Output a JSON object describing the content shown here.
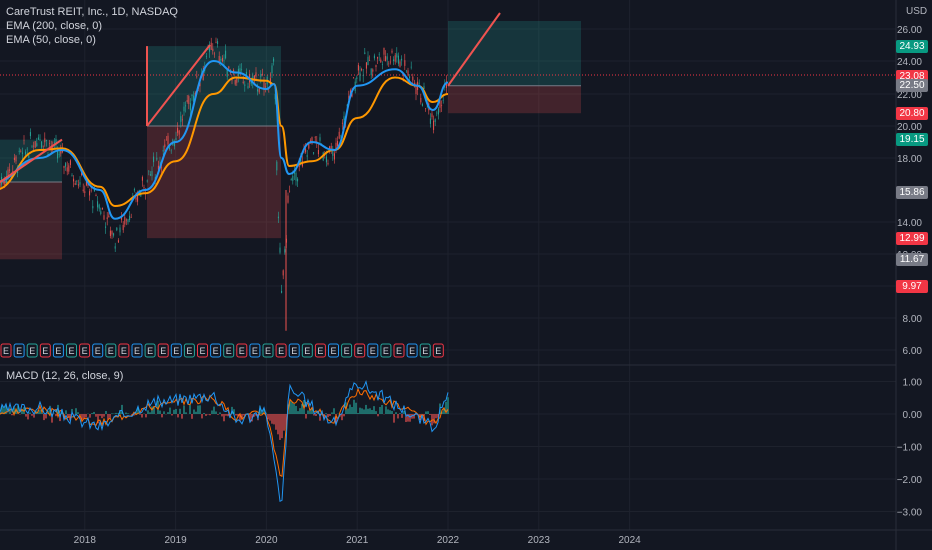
{
  "legend": {
    "symbol": "CareTrust REIT, Inc., 1D, NASDAQ",
    "ema200": "EMA (200, close, 0)",
    "ema50": "EMA (50, close, 0)",
    "macd": "MACD (12, 26, close, 9)"
  },
  "currency": "USD",
  "colors": {
    "background": "#131722",
    "ema_fast": "#2196f3",
    "ema_slow": "#ff9800",
    "up": "#26a69a",
    "down": "#ef5350",
    "macd_line": "#2196f3",
    "signal_line": "#ff6d00"
  },
  "price_tags": [
    {
      "value": "24.93",
      "color": "#089981"
    },
    {
      "value": "23.08",
      "color": "#f23645"
    },
    {
      "value": "22.50",
      "color": "#787b86"
    },
    {
      "value": "20.80",
      "color": "#f23645"
    },
    {
      "value": "19.15",
      "color": "#089981"
    },
    {
      "value": "15.86",
      "color": "#787b86"
    },
    {
      "value": "12.99",
      "color": "#f23645"
    },
    {
      "value": "11.67",
      "color": "#787b86"
    },
    {
      "value": "9.97",
      "color": "#f23645"
    }
  ],
  "chart_data": [
    {
      "type": "line",
      "title": "CareTrust REIT, Inc., 1D, NASDAQ",
      "price_axis_ticks": [
        "26.00",
        "24.00",
        "22.00",
        "20.00",
        "18.00",
        "14.00",
        "12.00",
        "10.00",
        "8.00",
        "6.00"
      ],
      "price_axis_values": [
        26,
        24,
        22,
        20,
        18,
        14,
        12,
        10,
        8,
        6
      ],
      "time_axis_ticks": [
        "2018",
        "2019",
        "2020",
        "2021",
        "2022",
        "2023",
        "2024"
      ],
      "series": [
        {
          "name": "Price",
          "x": [
            "2017-01",
            "2017-07",
            "2017-10",
            "2018-03",
            "2018-05",
            "2018-09",
            "2019-01",
            "2019-06",
            "2019-09",
            "2020-01",
            "2020-02",
            "2020-03",
            "2020-04",
            "2020-07",
            "2020-10",
            "2021-01",
            "2021-06",
            "2021-09",
            "2021-11",
            "2022-01"
          ],
          "values": [
            16.0,
            19.5,
            18.0,
            15.0,
            13.0,
            16.5,
            19.5,
            25.0,
            23.0,
            22.5,
            23.5,
            9.0,
            16.0,
            19.0,
            18.0,
            23.5,
            24.5,
            22.5,
            20.5,
            22.8
          ]
        },
        {
          "name": "EMA (50, close, 0)",
          "values": [
            16.0,
            18.5,
            18.6,
            16.2,
            15.0,
            15.8,
            17.8,
            22.0,
            23.0,
            22.8,
            22.6,
            20.0,
            17.5,
            17.8,
            18.5,
            20.5,
            23.0,
            22.5,
            21.5,
            22.0
          ]
        },
        {
          "name": "EMA (200, close, 0)",
          "values": [
            16.5,
            18.0,
            18.5,
            16.0,
            14.2,
            16.0,
            19.0,
            24.0,
            23.3,
            22.3,
            22.6,
            18.0,
            17.0,
            19.0,
            18.5,
            22.5,
            23.5,
            22.5,
            21.0,
            22.7
          ]
        }
      ],
      "positions": [
        {
          "side": "long",
          "target": 19.15,
          "stop": 11.67
        },
        {
          "side": "long",
          "target": 24.93,
          "stop": 12.99
        },
        {
          "side": "long",
          "target": 26.5,
          "stop": 20.8
        }
      ]
    },
    {
      "type": "line",
      "title": "MACD (12, 26, close, 9)",
      "axis_ticks": [
        "1.00",
        "0.00",
        "−1.00",
        "−2.00",
        "−3.00"
      ],
      "axis_values": [
        1,
        0,
        -1,
        -2,
        -3
      ],
      "series": [
        {
          "name": "MACD",
          "x": [
            "2017-01",
            "2017-07",
            "2018-03",
            "2018-09",
            "2019-06",
            "2019-09",
            "2020-01",
            "2020-03",
            "2020-04",
            "2020-10",
            "2021-01",
            "2021-06",
            "2021-11",
            "2022-01"
          ],
          "values": [
            0.1,
            0.2,
            -0.4,
            0.3,
            0.6,
            -0.2,
            0.1,
            -3.0,
            0.8,
            -0.3,
            1.0,
            0.3,
            -0.4,
            0.5
          ]
        },
        {
          "name": "Signal",
          "values": [
            0.05,
            0.15,
            -0.3,
            0.2,
            0.5,
            -0.1,
            0.05,
            -2.0,
            0.5,
            -0.2,
            0.7,
            0.3,
            -0.3,
            0.2
          ]
        }
      ]
    }
  ]
}
